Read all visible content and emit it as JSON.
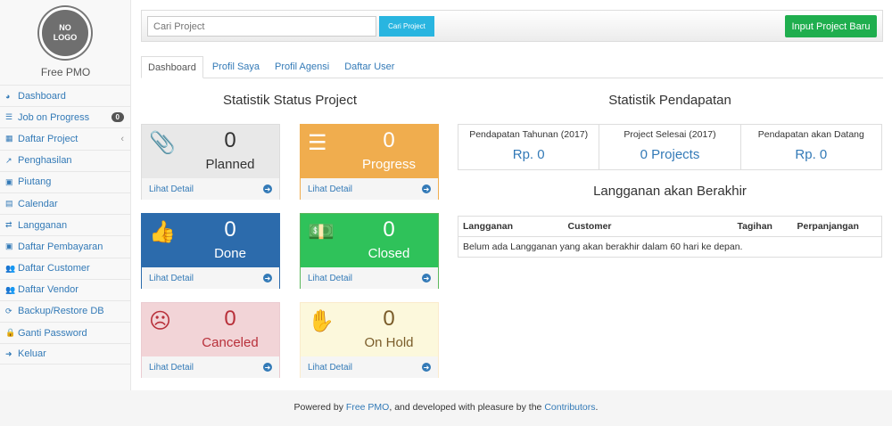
{
  "sidebar": {
    "logo_text": "NO LOGO",
    "brand": "Free PMO",
    "items": [
      {
        "label": "Dashboard",
        "icon": "dashboard-icon",
        "glyph": "◕"
      },
      {
        "label": "Job on Progress",
        "icon": "tasks-icon",
        "glyph": "☰",
        "badge": "0"
      },
      {
        "label": "Daftar Project",
        "icon": "table-icon",
        "glyph": "▦",
        "chevron": "‹"
      },
      {
        "label": "Penghasilan",
        "icon": "line-chart-icon",
        "glyph": "↗"
      },
      {
        "label": "Piutang",
        "icon": "money-icon",
        "glyph": "▣"
      },
      {
        "label": "Calendar",
        "icon": "calendar-icon",
        "glyph": "▤"
      },
      {
        "label": "Langganan",
        "icon": "retweet-icon",
        "glyph": "⇄"
      },
      {
        "label": "Daftar Pembayaran",
        "icon": "money-icon",
        "glyph": "▣"
      },
      {
        "label": "Daftar Customer",
        "icon": "users-icon",
        "glyph": "👥"
      },
      {
        "label": "Daftar Vendor",
        "icon": "users-icon",
        "glyph": "👥"
      },
      {
        "label": "Backup/Restore DB",
        "icon": "refresh-icon",
        "glyph": "⟳"
      },
      {
        "label": "Ganti Password",
        "icon": "lock-icon",
        "glyph": "🔒"
      },
      {
        "label": "Keluar",
        "icon": "sign-out-icon",
        "glyph": "➜"
      }
    ]
  },
  "toolbar": {
    "search_placeholder": "Cari Project",
    "search_button": "Cari Project",
    "new_button": "Input Project Baru"
  },
  "tabs": [
    "Dashboard",
    "Profil Saya",
    "Profil Agensi",
    "Daftar User"
  ],
  "status": {
    "title": "Statistik Status Project",
    "detail_label": "Lihat Detail",
    "cards": [
      {
        "count": "0",
        "label": "Planned",
        "icon": "paperclip-icon",
        "glyph": "📎",
        "bg": "#e8e8e8",
        "fg": "#333",
        "border": "#ddd"
      },
      {
        "count": "0",
        "label": "Progress",
        "icon": "tasks-icon",
        "glyph": "☰",
        "bg": "#f0ad4e",
        "fg": "#fff",
        "border": "#f0ad4e"
      },
      {
        "count": "0",
        "label": "Done",
        "icon": "thumbs-up-icon",
        "glyph": "👍",
        "bg": "#2c6bac",
        "fg": "#fff",
        "border": "#2c6bac"
      },
      {
        "count": "0",
        "label": "Closed",
        "icon": "money-icon",
        "glyph": "💵",
        "bg": "#2fc25a",
        "fg": "#fff",
        "border": "#5cb85c"
      },
      {
        "count": "0",
        "label": "Canceled",
        "icon": "frown-icon",
        "glyph": "☹",
        "bg": "#f2d4d7",
        "fg": "#b8303a",
        "border": "#ebccd1"
      },
      {
        "count": "0",
        "label": "On Hold",
        "icon": "hand-stop-icon",
        "glyph": "✋",
        "bg": "#fcf8dc",
        "fg": "#7a5c2a",
        "border": "#faebcc"
      }
    ]
  },
  "income": {
    "title": "Statistik Pendapatan",
    "stats": [
      {
        "label": "Pendapatan Tahunan (2017)",
        "value": "Rp. 0"
      },
      {
        "label": "Project Selesai (2017)",
        "value": "0 Projects"
      },
      {
        "label": "Pendapatan akan Datang",
        "value": "Rp. 0"
      }
    ]
  },
  "subscriptions": {
    "title": "Langganan akan Berakhir",
    "columns": [
      "Langganan",
      "Customer",
      "Tagihan",
      "Perpanjangan"
    ],
    "empty": "Belum ada Langganan yang akan berakhir dalam 60 hari ke depan."
  },
  "footer": {
    "prefix": "Powered by ",
    "link1": "Free PMO",
    "middle": ", and developed with pleasure by the ",
    "link2": "Contributors",
    "suffix": "."
  }
}
